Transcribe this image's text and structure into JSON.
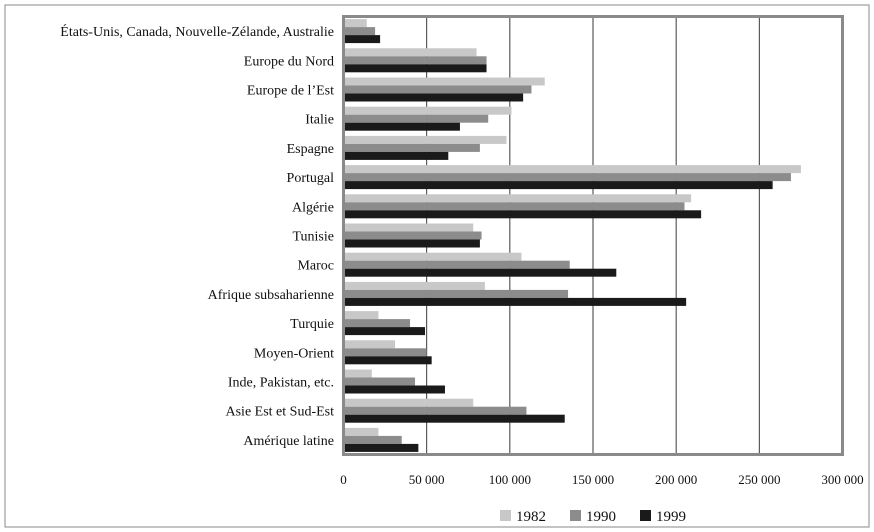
{
  "chart_data": {
    "type": "bar",
    "orientation": "horizontal",
    "title": "",
    "xlabel": "",
    "ylabel": "",
    "xlim": [
      0,
      300000
    ],
    "ticks": [
      0,
      50000,
      100000,
      150000,
      200000,
      250000,
      300000
    ],
    "tick_labels": [
      "0",
      "50 000",
      "100 000",
      "150 000",
      "200 000",
      "250 000",
      "300 000"
    ],
    "grid": "vertical",
    "legend_position": "bottom-center",
    "categories": [
      "États-Unis, Canada, Nouvelle-Zélande, Australie",
      "Europe du Nord",
      "Europe de l’Est",
      "Italie",
      "Espagne",
      "Portugal",
      "Algérie",
      "Tunisie",
      "Maroc",
      "Afrique subsaharienne",
      "Turquie",
      "Moyen-Orient",
      "Inde, Pakistan, etc.",
      "Asie Est et Sud-Est",
      "Amérique latine"
    ],
    "series": [
      {
        "name": "1982",
        "color": "#c8c8c8",
        "values": [
          14000,
          80000,
          121000,
          101000,
          98000,
          275000,
          209000,
          78000,
          107000,
          85000,
          21000,
          31000,
          17000,
          78000,
          21000
        ]
      },
      {
        "name": "1990",
        "color": "#8c8c8c",
        "values": [
          19000,
          86000,
          113000,
          87000,
          82000,
          269000,
          205000,
          83000,
          136000,
          135000,
          40000,
          50000,
          43000,
          110000,
          35000
        ]
      },
      {
        "name": "1999",
        "color": "#1a1a1a",
        "values": [
          22000,
          86000,
          108000,
          70000,
          63000,
          258000,
          215000,
          82000,
          164000,
          206000,
          49000,
          53000,
          61000,
          133000,
          45000
        ]
      }
    ]
  }
}
